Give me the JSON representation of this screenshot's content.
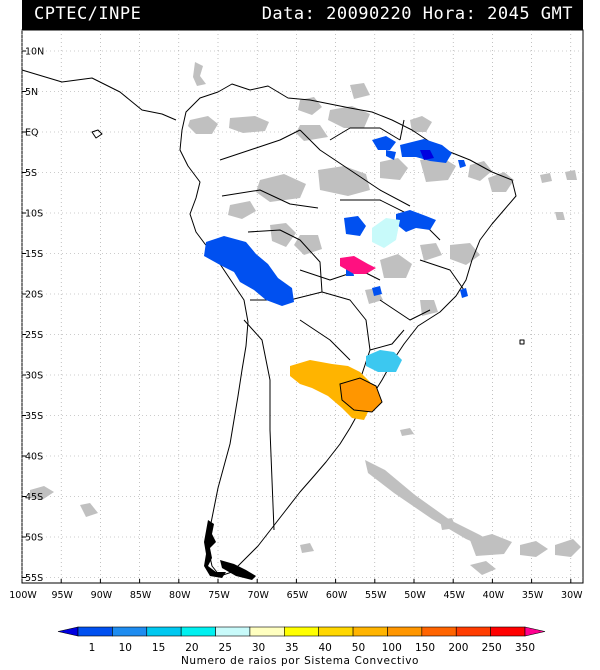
{
  "header": {
    "title": "CPTEC/INPE",
    "stamp": "Data: 20090220 Hora: 2045 GMT"
  },
  "axes": {
    "lat_labels": [
      "10N",
      "5N",
      "EQ",
      "5S",
      "10S",
      "15S",
      "20S",
      "25S",
      "30S",
      "35S",
      "40S",
      "45S",
      "50S",
      "55S"
    ],
    "lon_labels": [
      "100W",
      "95W",
      "90W",
      "85W",
      "80W",
      "75W",
      "70W",
      "65W",
      "60W",
      "55W",
      "50W",
      "45W",
      "40W",
      "35W",
      "30W"
    ]
  },
  "legend": {
    "label": "Numero de raios por Sistema Convectivo",
    "ticks": [
      "1",
      "10",
      "15",
      "20",
      "25",
      "30",
      "35",
      "40",
      "50",
      "100",
      "150",
      "200",
      "250",
      "350"
    ],
    "colors": [
      "#0000e0",
      "#0050f0",
      "#1e8cf0",
      "#00c8f0",
      "#00f0f0",
      "#c8fafa",
      "#ffffc0",
      "#ffff00",
      "#ffd700",
      "#ffb400",
      "#ff9600",
      "#ff6400",
      "#ff3c00",
      "#ff0000",
      "#ff0090"
    ]
  },
  "colors": {
    "cloud": "#c0c0c0",
    "blue": "#0050f0",
    "deep_blue": "#0000e0",
    "cyan": "#3cc8f0",
    "light_cyan": "#c8fafa",
    "yellow_orange": "#ffb400",
    "orange": "#ff9600",
    "magenta": "#ff1080"
  }
}
